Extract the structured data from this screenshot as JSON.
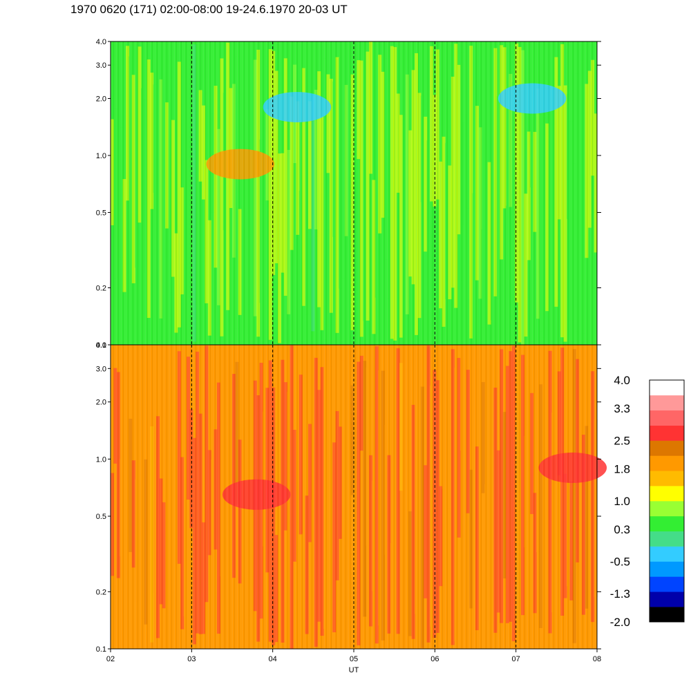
{
  "title": "1970 0620 (171) 02:00-08:00 19-24.6.1970  20-03 UT",
  "chart_data": [
    {
      "type": "heatmap",
      "panel": "upper",
      "y_scale": "log",
      "ylim": [
        0.1,
        4.0
      ],
      "y_ticks": [
        "4.0",
        "3.0",
        "2.0",
        "1.0",
        "0.5",
        "0.2",
        "0.1"
      ],
      "y_tick_values": [
        4.0,
        3.0,
        2.0,
        1.0,
        0.5,
        0.2,
        0.1
      ],
      "xlim": [
        "02",
        "08"
      ],
      "day_markers": [
        "03",
        "04",
        "05",
        "06",
        "07"
      ],
      "dominant_levels": [
        0.3,
        1.0
      ],
      "features": [
        {
          "x": 3.6,
          "y": 0.9,
          "level": 1.8,
          "label": "orange band"
        },
        {
          "x": 4.3,
          "y": 1.8,
          "level": -0.5,
          "label": "blue patch"
        },
        {
          "x": 7.2,
          "y": 2.0,
          "level": -0.5,
          "label": "blue patch"
        }
      ]
    },
    {
      "type": "heatmap",
      "panel": "lower",
      "y_scale": "log",
      "ylim": [
        0.1,
        4.0
      ],
      "y_ticks": [
        "4.0",
        "3.0",
        "2.0",
        "1.0",
        "0.5",
        "0.2",
        "0.1"
      ],
      "y_tick_values": [
        4.0,
        3.0,
        2.0,
        1.0,
        0.5,
        0.2,
        0.1
      ],
      "xlim": [
        "02",
        "08"
      ],
      "x_ticks": [
        "02",
        "03",
        "04",
        "05",
        "06",
        "07",
        "08"
      ],
      "xlabel": "UT",
      "day_markers": [
        "03",
        "04",
        "05",
        "06",
        "07"
      ],
      "dominant_levels": [
        1.8,
        2.5
      ],
      "features": [
        {
          "x": 3.8,
          "y": 0.65,
          "level": 2.5,
          "label": "dark orange band"
        },
        {
          "x": 7.7,
          "y": 0.9,
          "level": 2.5,
          "label": "dark orange band"
        }
      ]
    }
  ],
  "colorbar": {
    "labels": [
      "4.0",
      "3.3",
      "2.5",
      "1.8",
      "1.0",
      "0.3",
      "-0.5",
      "-1.3",
      "-2.0"
    ],
    "label_values": [
      4.0,
      3.3,
      2.5,
      1.8,
      1.0,
      0.3,
      -0.5,
      -1.3,
      -2.0
    ],
    "vmin": -2.0,
    "vmax": 4.0,
    "colors": [
      "#000000",
      "#0000aa",
      "#0044ff",
      "#0099ff",
      "#33ccff",
      "#44dd88",
      "#33ee33",
      "#99ff33",
      "#ffff00",
      "#ffbb00",
      "#ff9900",
      "#dd7700",
      "#ff3333",
      "#ff6666",
      "#ff9999",
      "#ffffff"
    ]
  }
}
